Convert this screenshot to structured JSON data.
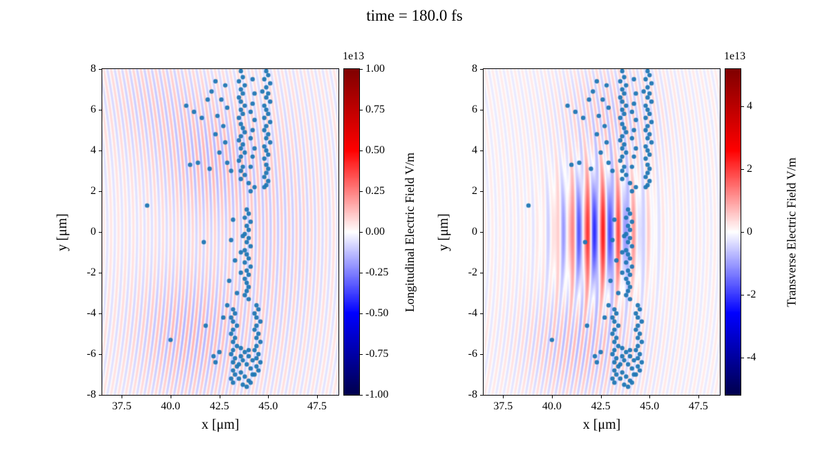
{
  "title": "time = 180.0 fs",
  "chart_data": {
    "type": "heatmap",
    "title": "time = 180.0 fs",
    "description": "Two-panel particle-in-cell simulation snapshot: diverging red-white-blue electric field maps with electron macro-particle scatter overlay",
    "panels": [
      {
        "name": "longitudinal-field",
        "xlabel": "x [μm]",
        "ylabel": "y [μm]",
        "xlim": [
          36.5,
          48.6
        ],
        "ylim": [
          -8,
          8
        ],
        "xtick_values": [
          37.5,
          40.0,
          42.5,
          45.0,
          47.5
        ],
        "xtick_labels": [
          "37.5",
          "40.0",
          "42.5",
          "45.0",
          "47.5"
        ],
        "ytick_values": [
          8,
          6,
          4,
          2,
          0,
          -2,
          -4,
          -6,
          -8
        ],
        "ytick_labels": [
          "8",
          "6",
          "4",
          "2",
          "0",
          "-2",
          "-4",
          "-6",
          "-8"
        ],
        "colorbar": {
          "label": "Longitudinal Electric Field V/m",
          "offset": "1e13",
          "vmin": -1.0,
          "vmax": 1.0,
          "tick_values": [
            1.0,
            0.75,
            0.5,
            0.25,
            0.0,
            -0.25,
            -0.5,
            -0.75,
            -1.0
          ],
          "tick_labels": [
            "1.00",
            "0.75",
            "0.50",
            "0.25",
            "0.00",
            "-0.25",
            "-0.50",
            "-0.75",
            "-1.00"
          ],
          "colormap": "seismic"
        },
        "field": {
          "kind": "wake",
          "wavelength": 0.38,
          "curvature": 0.012,
          "base_amp": 0.05,
          "blobs": [
            {
              "x": 41.0,
              "y": -5.0,
              "sx": 8,
              "sy": 10,
              "a": 0.1
            },
            {
              "x": 42.0,
              "y": 3.5,
              "sx": 6,
              "sy": 9,
              "a": 0.09
            },
            {
              "x": 45.5,
              "y": 0.0,
              "sx": 6,
              "sy": 40,
              "a": 0.05
            },
            {
              "x": 39.0,
              "y": 6.5,
              "sx": 6,
              "sy": 8,
              "a": 0.05
            }
          ]
        }
      },
      {
        "name": "transverse-field",
        "xlabel": "x [μm]",
        "ylabel": "y [μm]",
        "xlim": [
          36.5,
          48.6
        ],
        "ylim": [
          -8,
          8
        ],
        "xtick_values": [
          37.5,
          40.0,
          42.5,
          45.0,
          47.5
        ],
        "xtick_labels": [
          "37.5",
          "40.0",
          "42.5",
          "45.0",
          "47.5"
        ],
        "ytick_values": [
          8,
          6,
          4,
          2,
          0,
          -2,
          -4,
          -6,
          -8
        ],
        "ytick_labels": [
          "8",
          "6",
          "4",
          "2",
          "0",
          "-2",
          "-4",
          "-6",
          "-8"
        ],
        "colorbar": {
          "label": "Transverse Electric Field V/m",
          "offset": "1e13",
          "vmin": -5.2,
          "vmax": 5.2,
          "tick_values": [
            4,
            2,
            0,
            -2,
            -4
          ],
          "tick_labels": [
            "4",
            "2",
            "0",
            "-2",
            "-4"
          ],
          "colormap": "seismic"
        },
        "field": {
          "kind": "laser",
          "wavelength": 0.8,
          "center_x": 42.4,
          "sigma_x2": 3.5,
          "sigma_y2": 7.0,
          "amp": 0.42,
          "wake": {
            "wavelength": 0.38,
            "curvature": 0.012,
            "base_amp": 0.04,
            "blobs": [
              {
                "x": 41.5,
                "y": -5.5,
                "sx": 8,
                "sy": 7,
                "a": 0.1
              },
              {
                "x": 43.0,
                "y": 5.5,
                "sx": 6,
                "sy": 7,
                "a": 0.08
              }
            ]
          }
        }
      }
    ],
    "scatter": {
      "name": "macro-particles",
      "color": "#1f77b4",
      "radius_px": 3.2,
      "points": [
        [
          44.9,
          7.9
        ],
        [
          45.0,
          7.7
        ],
        [
          44.8,
          7.5
        ],
        [
          45.1,
          7.3
        ],
        [
          44.9,
          7.1
        ],
        [
          44.7,
          6.9
        ],
        [
          45.0,
          6.8
        ],
        [
          44.9,
          6.6
        ],
        [
          45.1,
          6.4
        ],
        [
          44.8,
          6.2
        ],
        [
          44.9,
          6.0
        ],
        [
          45.0,
          5.8
        ],
        [
          44.8,
          5.6
        ],
        [
          45.1,
          5.4
        ],
        [
          44.9,
          5.2
        ],
        [
          44.8,
          5.0
        ],
        [
          45.0,
          4.8
        ],
        [
          44.9,
          4.6
        ],
        [
          45.1,
          4.4
        ],
        [
          44.8,
          4.2
        ],
        [
          44.9,
          4.0
        ],
        [
          45.0,
          3.8
        ],
        [
          44.8,
          3.6
        ],
        [
          44.9,
          3.3
        ],
        [
          45.0,
          3.1
        ],
        [
          44.9,
          2.9
        ],
        [
          44.8,
          2.7
        ],
        [
          45.0,
          2.5
        ],
        [
          44.9,
          2.3
        ],
        [
          44.8,
          2.2
        ],
        [
          43.6,
          7.9
        ],
        [
          43.7,
          7.6
        ],
        [
          43.5,
          7.4
        ],
        [
          43.8,
          7.2
        ],
        [
          43.6,
          7.0
        ],
        [
          43.7,
          6.8
        ],
        [
          43.5,
          6.6
        ],
        [
          43.6,
          6.4
        ],
        [
          43.8,
          6.2
        ],
        [
          43.6,
          6.0
        ],
        [
          43.7,
          5.8
        ],
        [
          43.5,
          5.6
        ],
        [
          43.6,
          5.3
        ],
        [
          43.7,
          5.1
        ],
        [
          43.8,
          4.9
        ],
        [
          43.6,
          4.7
        ],
        [
          43.5,
          4.5
        ],
        [
          43.7,
          4.3
        ],
        [
          43.6,
          4.1
        ],
        [
          43.8,
          3.9
        ],
        [
          43.6,
          3.7
        ],
        [
          43.5,
          3.5
        ],
        [
          43.7,
          3.2
        ],
        [
          43.6,
          3.0
        ],
        [
          43.8,
          2.8
        ],
        [
          43.6,
          2.6
        ],
        [
          42.3,
          7.4
        ],
        [
          42.8,
          7.2
        ],
        [
          44.2,
          7.5
        ],
        [
          42.1,
          6.9
        ],
        [
          44.3,
          6.8
        ],
        [
          42.6,
          6.5
        ],
        [
          44.2,
          6.3
        ],
        [
          42.9,
          6.1
        ],
        [
          44.1,
          5.9
        ],
        [
          42.4,
          5.7
        ],
        [
          44.3,
          5.5
        ],
        [
          42.7,
          5.2
        ],
        [
          44.2,
          5.0
        ],
        [
          42.3,
          4.8
        ],
        [
          44.1,
          4.6
        ],
        [
          42.8,
          4.4
        ],
        [
          44.3,
          4.1
        ],
        [
          42.5,
          3.9
        ],
        [
          44.2,
          3.7
        ],
        [
          42.9,
          3.4
        ],
        [
          44.1,
          3.2
        ],
        [
          43.1,
          3.0
        ],
        [
          44.0,
          2.4
        ],
        [
          44.3,
          2.2
        ],
        [
          44.1,
          2.0
        ],
        [
          40.8,
          6.2
        ],
        [
          41.2,
          5.9
        ],
        [
          41.6,
          5.6
        ],
        [
          41.9,
          6.5
        ],
        [
          41.4,
          3.4
        ],
        [
          41.0,
          3.3
        ],
        [
          42.0,
          3.1
        ],
        [
          38.8,
          1.3
        ],
        [
          40.0,
          -5.3
        ],
        [
          41.7,
          -0.5
        ],
        [
          41.8,
          -4.6
        ],
        [
          42.3,
          -6.4
        ],
        [
          43.9,
          1.1
        ],
        [
          44.0,
          0.9
        ],
        [
          43.8,
          0.7
        ],
        [
          44.1,
          0.5
        ],
        [
          43.9,
          0.3
        ],
        [
          44.0,
          0.1
        ],
        [
          43.8,
          -0.1
        ],
        [
          44.0,
          -0.3
        ],
        [
          43.9,
          -0.5
        ],
        [
          44.1,
          -0.7
        ],
        [
          43.8,
          -0.9
        ],
        [
          43.9,
          -1.1
        ],
        [
          44.0,
          -1.3
        ],
        [
          43.8,
          -1.5
        ],
        [
          44.1,
          -1.7
        ],
        [
          43.9,
          -1.9
        ],
        [
          44.0,
          -2.1
        ],
        [
          43.8,
          -2.3
        ],
        [
          43.9,
          -2.5
        ],
        [
          44.0,
          -2.7
        ],
        [
          43.9,
          -2.9
        ],
        [
          43.8,
          -3.1
        ],
        [
          44.0,
          -3.3
        ],
        [
          43.7,
          -0.2
        ],
        [
          43.6,
          -1.0
        ],
        [
          43.6,
          -2.0
        ],
        [
          43.2,
          0.6
        ],
        [
          43.1,
          -0.4
        ],
        [
          43.3,
          -1.4
        ],
        [
          43.0,
          -2.4
        ],
        [
          43.4,
          -3.0
        ],
        [
          43.2,
          -3.8
        ],
        [
          43.3,
          -4.0
        ],
        [
          43.1,
          -4.2
        ],
        [
          43.2,
          -4.4
        ],
        [
          43.4,
          -4.6
        ],
        [
          43.2,
          -4.8
        ],
        [
          43.1,
          -5.0
        ],
        [
          43.3,
          -5.2
        ],
        [
          43.2,
          -5.4
        ],
        [
          43.4,
          -5.6
        ],
        [
          43.2,
          -5.8
        ],
        [
          43.1,
          -6.0
        ],
        [
          43.3,
          -6.2
        ],
        [
          43.2,
          -6.4
        ],
        [
          43.4,
          -6.6
        ],
        [
          43.2,
          -6.8
        ],
        [
          43.3,
          -7.0
        ],
        [
          43.1,
          -7.2
        ],
        [
          43.2,
          -7.4
        ],
        [
          44.4,
          -3.6
        ],
        [
          44.5,
          -3.8
        ],
        [
          44.3,
          -4.0
        ],
        [
          44.4,
          -4.2
        ],
        [
          44.6,
          -4.4
        ],
        [
          44.4,
          -4.6
        ],
        [
          44.3,
          -4.8
        ],
        [
          44.5,
          -5.0
        ],
        [
          44.4,
          -5.2
        ],
        [
          44.6,
          -5.4
        ],
        [
          44.4,
          -5.6
        ],
        [
          44.3,
          -5.8
        ],
        [
          44.5,
          -6.0
        ],
        [
          44.4,
          -6.2
        ],
        [
          44.6,
          -6.4
        ],
        [
          44.4,
          -6.6
        ],
        [
          44.5,
          -6.8
        ],
        [
          44.3,
          -7.0
        ],
        [
          43.6,
          -5.7
        ],
        [
          43.8,
          -5.9
        ],
        [
          44.0,
          -6.1
        ],
        [
          43.7,
          -6.3
        ],
        [
          43.9,
          -6.5
        ],
        [
          44.1,
          -6.7
        ],
        [
          43.6,
          -6.9
        ],
        [
          43.8,
          -7.1
        ],
        [
          44.0,
          -7.3
        ],
        [
          43.7,
          -7.5
        ],
        [
          43.9,
          -7.6
        ],
        [
          44.1,
          -7.4
        ],
        [
          43.5,
          -7.2
        ],
        [
          44.2,
          -7.0
        ],
        [
          43.5,
          -6.5
        ],
        [
          44.2,
          -6.3
        ],
        [
          43.6,
          -6.1
        ],
        [
          44.0,
          -5.8
        ],
        [
          42.5,
          -5.9
        ],
        [
          42.2,
          -6.1
        ],
        [
          42.7,
          -4.2
        ],
        [
          42.9,
          -3.6
        ]
      ]
    }
  }
}
